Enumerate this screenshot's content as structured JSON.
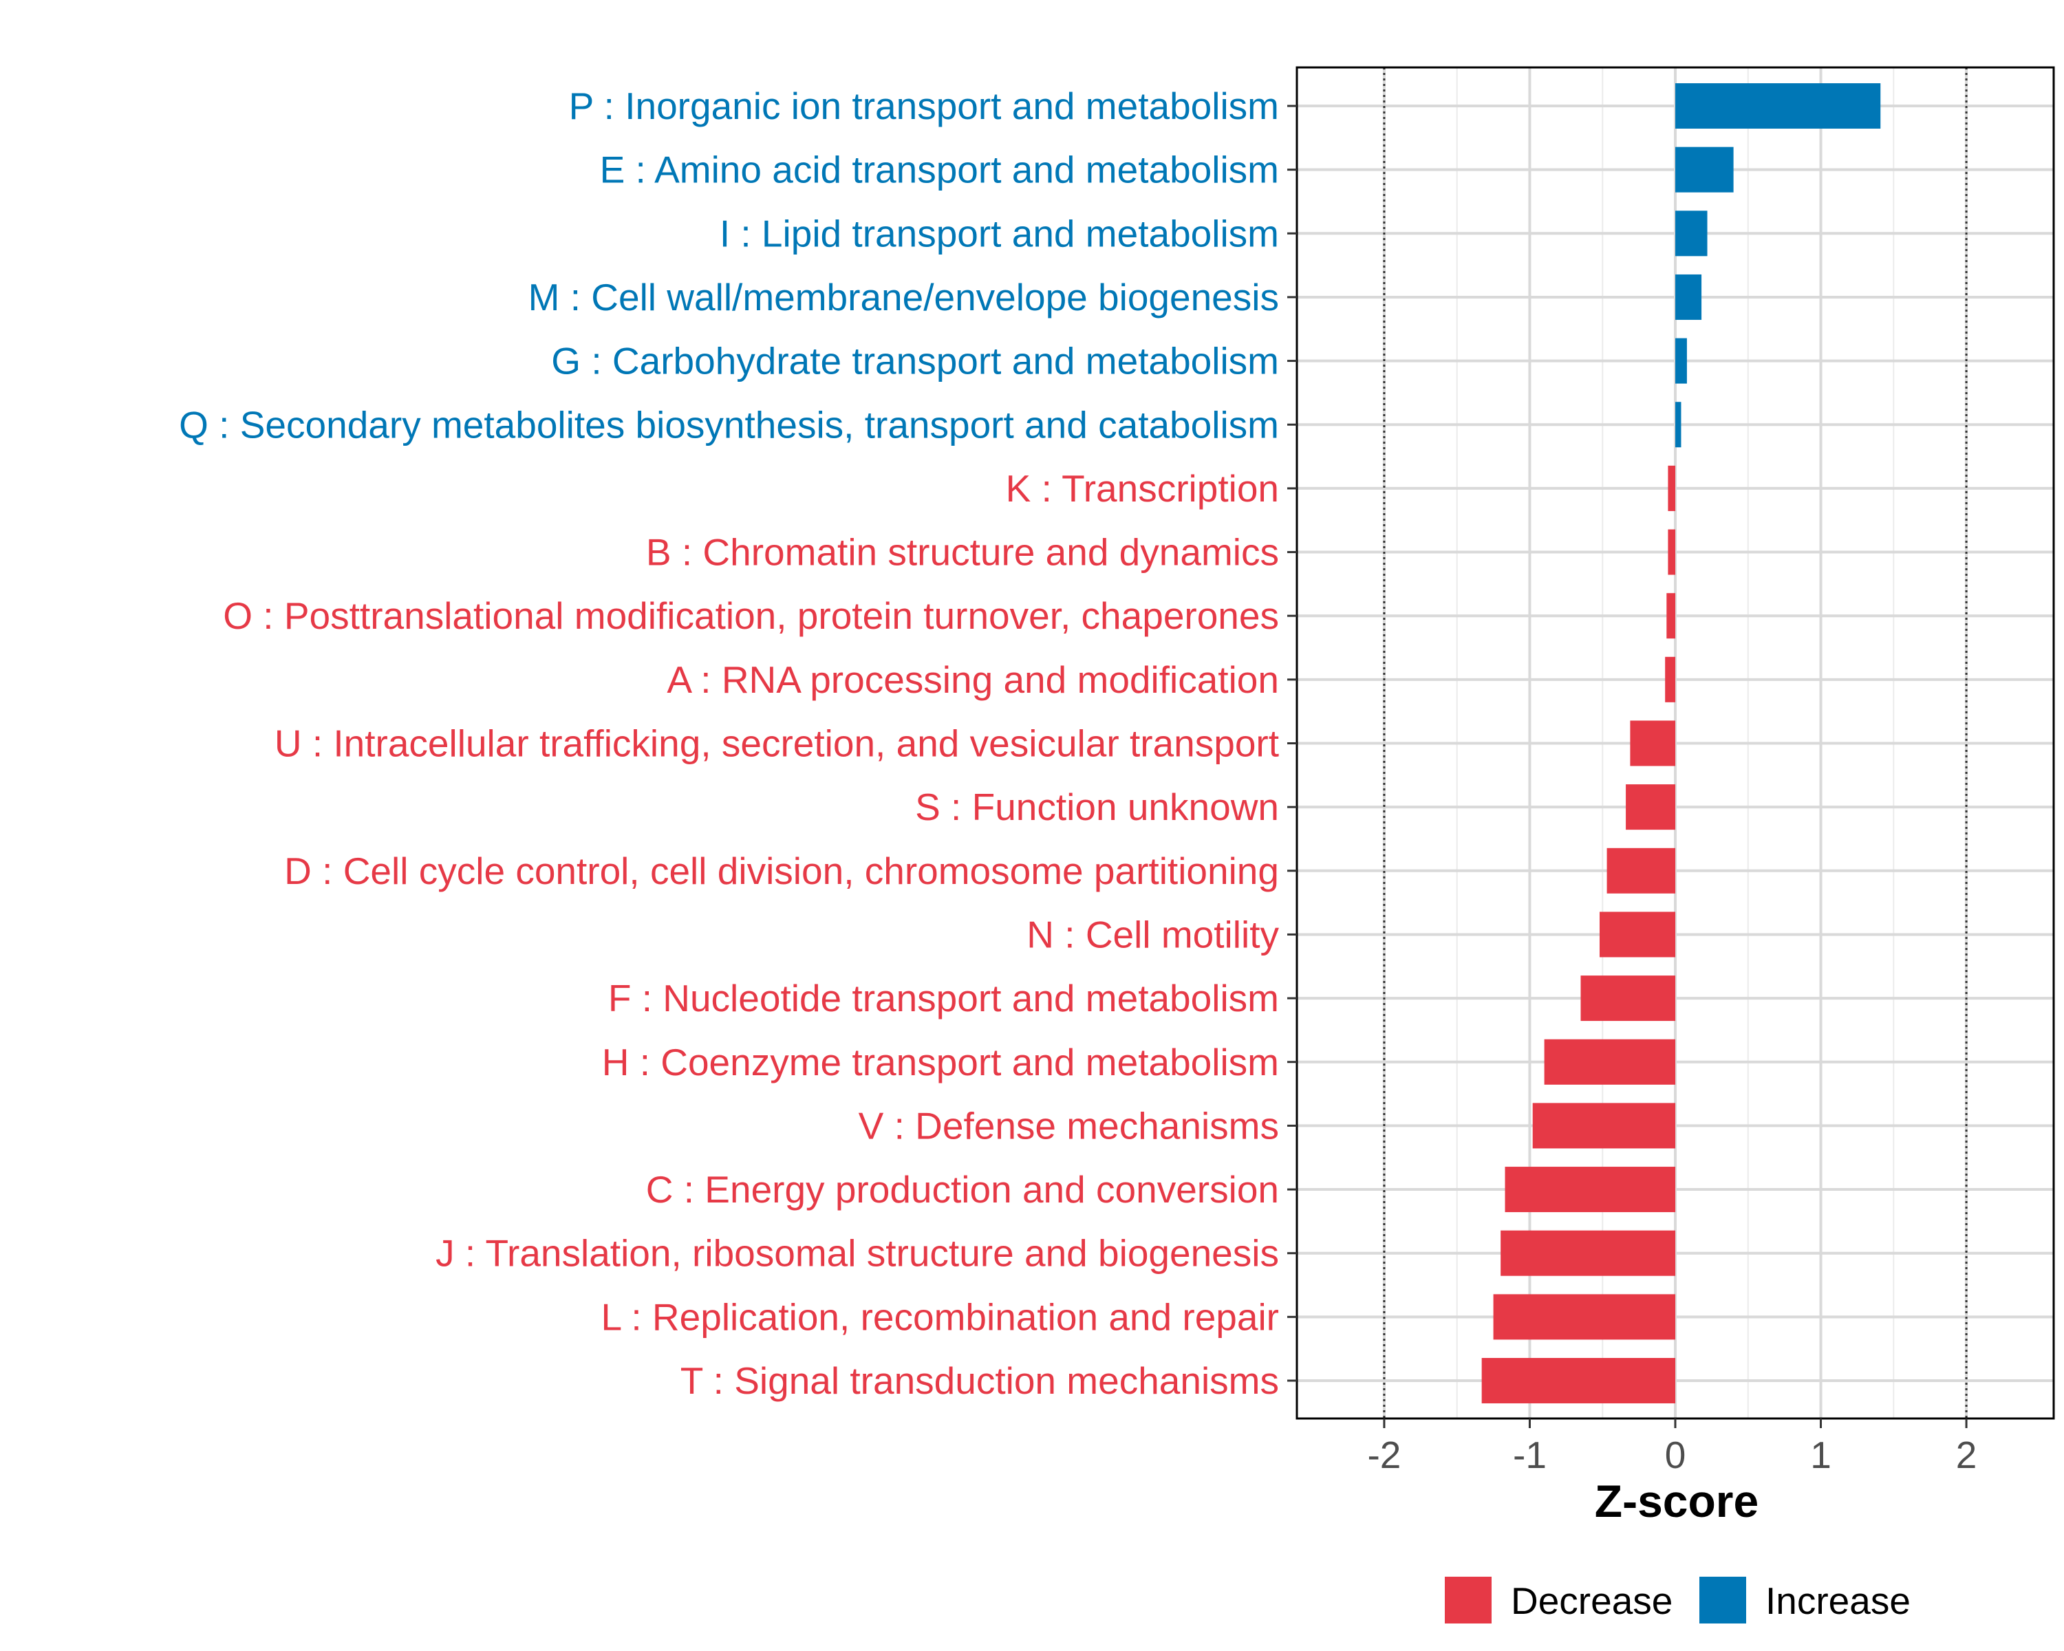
{
  "chart_data": {
    "type": "bar",
    "orientation": "horizontal",
    "title": "",
    "xlabel": "Z-score",
    "ylabel": "",
    "xlim": [
      -2.6,
      2.6
    ],
    "x_ticks": [
      -2,
      -1,
      0,
      1,
      2
    ],
    "x_tick_labels": [
      "-2",
      "-1",
      "0",
      "1",
      "2"
    ],
    "reference_lines": [
      -2,
      2
    ],
    "grid": true,
    "legend_position": "bottom",
    "colors": {
      "Decrease": "#e63946",
      "Increase": "#0077b6"
    },
    "legend": [
      {
        "name": "Decrease",
        "color": "#e63946"
      },
      {
        "name": "Increase",
        "color": "#0077b6"
      }
    ],
    "categories": [
      "P : Inorganic ion transport and metabolism",
      "E : Amino acid transport and metabolism",
      "I : Lipid transport and metabolism",
      "M : Cell wall/membrane/envelope biogenesis",
      "G : Carbohydrate transport and metabolism",
      "Q : Secondary metabolites biosynthesis, transport and catabolism",
      "K : Transcription",
      "B : Chromatin structure and dynamics",
      "O : Posttranslational modification, protein turnover, chaperones",
      "A : RNA processing and modification",
      "U : Intracellular trafficking, secretion, and vesicular transport",
      "S : Function unknown",
      "D : Cell cycle control, cell division, chromosome partitioning",
      "N : Cell motility",
      "F : Nucleotide transport and metabolism",
      "H : Coenzyme transport and metabolism",
      "V : Defense mechanisms",
      "C : Energy production and conversion",
      "J : Translation, ribosomal structure and biogenesis",
      "L : Replication, recombination and repair",
      "T : Signal transduction mechanisms"
    ],
    "values": [
      1.41,
      0.4,
      0.22,
      0.18,
      0.08,
      0.04,
      -0.05,
      -0.05,
      -0.06,
      -0.07,
      -0.31,
      -0.34,
      -0.47,
      -0.52,
      -0.65,
      -0.9,
      -0.98,
      -1.17,
      -1.2,
      -1.25,
      -1.33
    ],
    "groups": [
      "Increase",
      "Increase",
      "Increase",
      "Increase",
      "Increase",
      "Increase",
      "Decrease",
      "Decrease",
      "Decrease",
      "Decrease",
      "Decrease",
      "Decrease",
      "Decrease",
      "Decrease",
      "Decrease",
      "Decrease",
      "Decrease",
      "Decrease",
      "Decrease",
      "Decrease",
      "Decrease"
    ]
  }
}
